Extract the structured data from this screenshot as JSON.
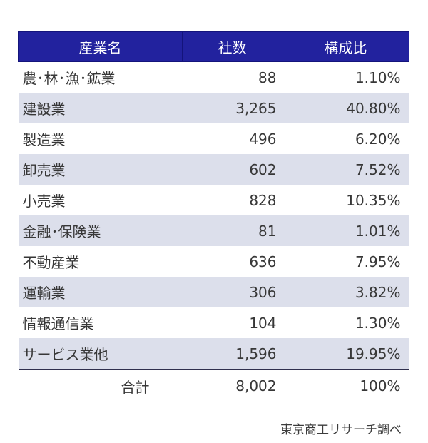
{
  "chart_data": {
    "type": "table",
    "columns": [
      "産業名",
      "社数",
      "構成比"
    ],
    "rows": [
      [
        "農･林･漁･鉱業",
        "88",
        "1.10%"
      ],
      [
        "建設業",
        "3,265",
        "40.80%"
      ],
      [
        "製造業",
        "496",
        "6.20%"
      ],
      [
        "卸売業",
        "602",
        "7.52%"
      ],
      [
        "小売業",
        "828",
        "10.35%"
      ],
      [
        "金融･保険業",
        "81",
        "1.01%"
      ],
      [
        "不動産業",
        "636",
        "7.95%"
      ],
      [
        "運輸業",
        "306",
        "3.82%"
      ],
      [
        "情報通信業",
        "104",
        "1.30%"
      ],
      [
        "サービス業他",
        "1,596",
        "19.95%"
      ]
    ],
    "total_row": [
      "合計",
      "8,002",
      "100%"
    ],
    "counts_numeric": [
      88,
      3265,
      496,
      602,
      828,
      81,
      636,
      306,
      104,
      1596
    ],
    "shares_numeric_percent": [
      1.1,
      40.8,
      6.2,
      7.52,
      10.35,
      1.01,
      7.95,
      3.82,
      1.3,
      19.95
    ],
    "total_count_numeric": 8002,
    "total_share_percent": 100
  },
  "footer": {
    "credit": "東京商工リサーチ調べ"
  },
  "colors": {
    "header_bg": "#22229e",
    "header_border": "#14147b",
    "header_text": "#ffffff",
    "row_alt_bg": "#dcdfeb",
    "text": "#373737",
    "total_divider": "#30304e",
    "footer_text": "#3c3c3c"
  }
}
